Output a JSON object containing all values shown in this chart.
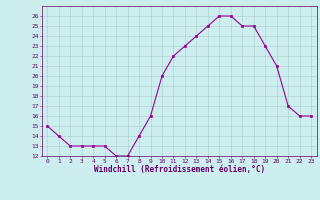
{
  "x": [
    0,
    1,
    2,
    3,
    4,
    5,
    6,
    7,
    8,
    9,
    10,
    11,
    12,
    13,
    14,
    15,
    16,
    17,
    18,
    19,
    20,
    21,
    22,
    23
  ],
  "y": [
    15,
    14,
    13,
    13,
    13,
    13,
    12,
    12,
    14,
    16,
    20,
    22,
    23,
    24,
    25,
    26,
    26,
    25,
    25,
    23,
    21,
    17,
    16,
    16
  ],
  "line_color": "#990099",
  "marker_color": "#990099",
  "bg_color": "#cceeee",
  "grid_color": "#aacccc",
  "xlabel": "Windchill (Refroidissement éolien,°C)",
  "xlabel_color": "#660066",
  "tick_color": "#660066",
  "ylim": [
    12,
    27
  ],
  "xlim": [
    -0.5,
    23.5
  ],
  "yticks": [
    12,
    13,
    14,
    15,
    16,
    17,
    18,
    19,
    20,
    21,
    22,
    23,
    24,
    25,
    26
  ],
  "xticks": [
    0,
    1,
    2,
    3,
    4,
    5,
    6,
    7,
    8,
    9,
    10,
    11,
    12,
    13,
    14,
    15,
    16,
    17,
    18,
    19,
    20,
    21,
    22,
    23
  ],
  "marker_size": 2.0,
  "line_width": 0.8,
  "tick_fontsize": 4.5,
  "xlabel_fontsize": 5.5
}
